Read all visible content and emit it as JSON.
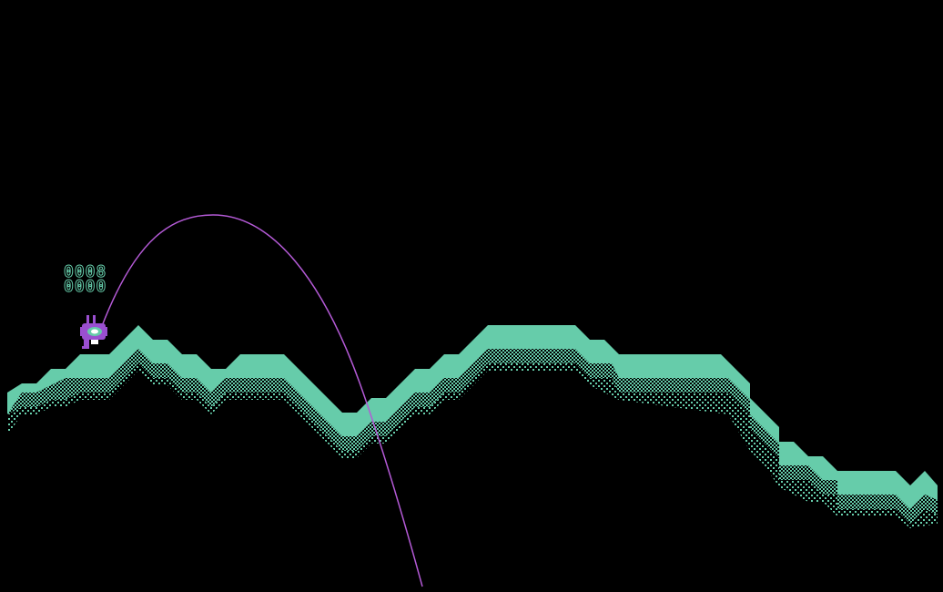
{
  "hud": {
    "power_readout": "0008",
    "angle_readout": "0000"
  },
  "colors": {
    "background": "#000000",
    "terrain_surface": "#66ccaa",
    "terrain_shadow": "#3f7f69",
    "trajectory": "#b45ad6",
    "player_body": "#9a4fd0",
    "player_eye": "#66ccaa"
  },
  "sprites": {
    "player": "purple-one-eyed-creature-icon",
    "trajectory": "arc-trajectory-line"
  }
}
